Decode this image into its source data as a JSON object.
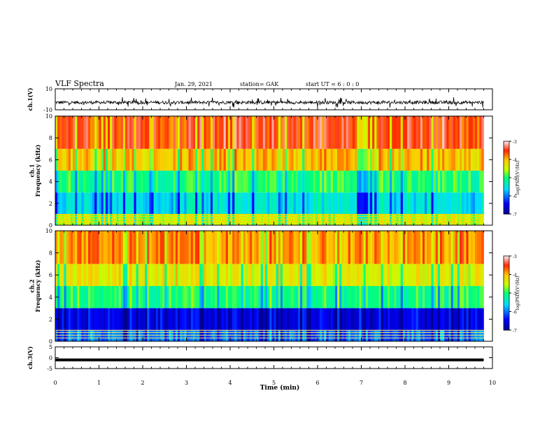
{
  "header": {
    "title": "VLF Spectra",
    "date": "Jan. 29, 2021",
    "station": "station= GAK",
    "start_ut": "start UT =  6 : 0 : 0"
  },
  "colors": {
    "axis": "#000000",
    "trace": "#000000"
  },
  "chart_data": [
    {
      "type": "line",
      "panel": "ch1-waveform",
      "ylabel": "ch.1(V)",
      "ylim": [
        -10,
        10
      ],
      "ytick_labels": [
        "10",
        "-10"
      ],
      "x": [
        0,
        1,
        2,
        3,
        4,
        5,
        6,
        7,
        8,
        9,
        9.8
      ],
      "y_center": [
        -3,
        -3,
        -3,
        -3,
        -3,
        -3,
        -3,
        -3,
        -3,
        -3,
        -3
      ],
      "y_range": [
        -8,
        2
      ]
    },
    {
      "type": "heatmap",
      "panel": "ch1-spectrogram",
      "ylabel": "ch.1 Frequency (kHz)",
      "ylim": [
        0,
        10
      ],
      "ytick_labels": [
        "0",
        "2",
        "4",
        "6",
        "8",
        "10"
      ],
      "colorbar": {
        "label": "log(PSD)(V²/Hz)",
        "range": [
          -7,
          -3
        ],
        "tick_labels": [
          "-3",
          "-4",
          "-5",
          "-6",
          "-7"
        ]
      },
      "bands": [
        {
          "freq_range": [
            0,
            1
          ],
          "level": -4.5
        },
        {
          "freq_range": [
            1,
            3
          ],
          "level": -5.5
        },
        {
          "freq_range": [
            3,
            5
          ],
          "level": -5.0
        },
        {
          "freq_range": [
            5,
            7
          ],
          "level": -4.0
        },
        {
          "freq_range": [
            7,
            10
          ],
          "level": -3.5
        }
      ]
    },
    {
      "type": "heatmap",
      "panel": "ch2-spectrogram",
      "ylabel": "ch.2 Frequency (kHz)",
      "ylim": [
        0,
        10
      ],
      "ytick_labels": [
        "0",
        "2",
        "4",
        "6",
        "8",
        "10"
      ],
      "colorbar": {
        "label": "log(PSD)(V²/Hz)",
        "range": [
          -7,
          -3
        ],
        "tick_labels": [
          "-3",
          "-4",
          "-5",
          "-6",
          "-7"
        ]
      },
      "bands": [
        {
          "freq_range": [
            0,
            1
          ],
          "level": -6.0
        },
        {
          "freq_range": [
            1,
            3
          ],
          "level": -6.5
        },
        {
          "freq_range": [
            3,
            5
          ],
          "level": -5.0
        },
        {
          "freq_range": [
            5,
            7
          ],
          "level": -4.3
        },
        {
          "freq_range": [
            7,
            10
          ],
          "level": -3.8
        }
      ]
    },
    {
      "type": "line",
      "panel": "ch3-waveform",
      "ylabel": "ch.3(V)",
      "ylim": [
        -5,
        5
      ],
      "ytick_labels": [
        "5",
        "0",
        "-5"
      ],
      "x": [
        0,
        9.8
      ],
      "y": [
        -1,
        -1
      ]
    }
  ],
  "xaxis": {
    "label": "Time (min)",
    "range": [
      0,
      10
    ],
    "tick_labels": [
      "0",
      "1",
      "2",
      "3",
      "4",
      "5",
      "6",
      "7",
      "8",
      "9",
      "10"
    ]
  }
}
